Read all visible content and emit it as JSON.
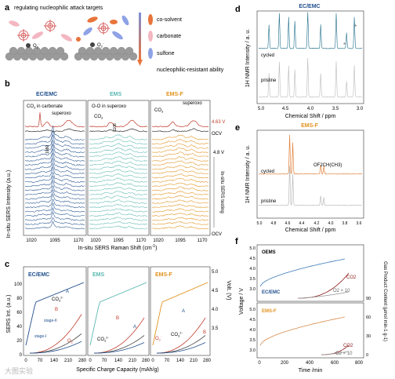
{
  "panel_a": {
    "label": "a",
    "title": "regulating nucleophilic attack targets",
    "legend": [
      {
        "label": "co-solvent",
        "color": "#e8743b"
      },
      {
        "label": "carbonate",
        "color": "#f3b7c1"
      },
      {
        "label": "sulfone",
        "color": "#8ea2e6"
      }
    ],
    "arrow_label": "nucleophilic-resistant ability",
    "o2_label_1": "O",
    "o2_label_2": "O",
    "o2_sub": "2",
    "o2_sup": "-"
  },
  "panel_b": {
    "label": "b",
    "ylabel": "In-situ SERS Intensity (a.u.)",
    "xlabel": "In-situ SERS Raman Shift (cm",
    "xlabel_sup": "-1",
    "xlabel_end": ")",
    "subpanels": [
      {
        "title": "EC/EMC",
        "color": "#1f4e8c",
        "ann1": "CO",
        "ann1b": " in carbonate",
        "ann2": "superoxo",
        "peak": "1080"
      },
      {
        "title": "EMS",
        "color": "#5bb8b0",
        "ann1": "O-O in superoxo",
        "ann2": "CO",
        "peak": "1108"
      },
      {
        "title": "EMS-F",
        "color": "#e0921e",
        "ann1": "CO",
        "ann2": "superoxo"
      }
    ],
    "xticks": [
      "1020",
      "1095",
      "1170"
    ],
    "right_labels": [
      "4.63 V",
      "OCV",
      "4.8 V",
      "OCV"
    ],
    "side_label": "In-situ SERS testing"
  },
  "panel_c": {
    "label": "c",
    "ylabel": "SERS Int. (a.u.)",
    "y2label": "Volt. (V)",
    "xlabel": "Specific Charge Capacity (mAh/g)",
    "yticks": [
      "0",
      "20",
      "40",
      "60",
      "80",
      "100"
    ],
    "y2ticks": [
      "3.5",
      "4.0",
      "4.5",
      "5.0"
    ],
    "xticks": [
      "0",
      "70",
      "140",
      "210",
      "280"
    ],
    "subpanels": [
      {
        "title": "EC/EMC",
        "labels": [
          "A",
          "CO",
          "B",
          "stage-II",
          "stage-I",
          "O"
        ]
      },
      {
        "title": "EMS",
        "labels": [
          "B",
          "A",
          "CO"
        ]
      },
      {
        "title": "EMS-F",
        "labels": [
          "A",
          "O",
          "CO",
          "B"
        ]
      }
    ]
  },
  "panel_d": {
    "label": "d",
    "title": "EC/EMC",
    "ylabel": "1H NMR Intensity / a. u.",
    "xlabel": "Chemical Shift / ppm",
    "xticks": [
      "5.0",
      "4.5",
      "4.0",
      "3.5",
      "3.0"
    ],
    "trace_labels": [
      "cycled",
      "pristine"
    ],
    "star": "*"
  },
  "panel_e": {
    "label": "e",
    "title": "EMS-F",
    "ylabel": "1H NMR Intensity / a. u.",
    "xlabel": "Chemical Shift / ppm",
    "xticks": [
      "5.0",
      "4.8",
      "4.6",
      "4.4",
      "4.2",
      "4.0",
      "3.8",
      "3.6"
    ],
    "trace_labels": [
      "cycled",
      "pristine"
    ],
    "annotation": "OF2CH(CH3)"
  },
  "panel_f": {
    "label": "f",
    "ylabel": "Voltage / V",
    "y2label": "Gas Product Content (μmol min-1 g-1)",
    "xlabel": "Time /min",
    "xticks": [
      "0",
      "200",
      "400",
      "600",
      "800"
    ],
    "yticks_top": [
      "3.0",
      "3.5",
      "4.0",
      "4.5",
      "5.0"
    ],
    "yticks_bottom": [
      "3.0",
      "3.5",
      "4.0",
      "4.5",
      "5.0"
    ],
    "y2ticks": [
      "0",
      "30",
      "60",
      "90"
    ],
    "top": {
      "title": "OEMS",
      "sub1": "EC/EMC",
      "co2": "CO2",
      "o2": "O2 × 10"
    },
    "bottom": {
      "title": "EMS-F",
      "co2": "CO2",
      "o2": "O2 × 10"
    }
  },
  "watermark": "大图实验"
}
